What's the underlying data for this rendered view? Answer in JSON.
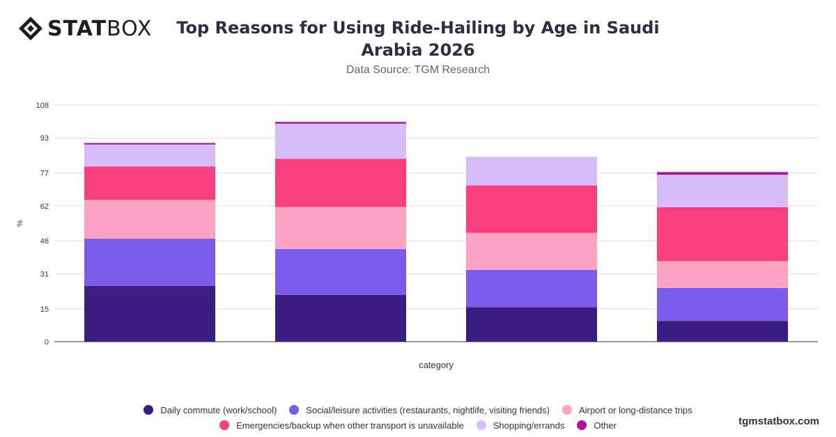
{
  "brand": {
    "logo_bold": "STAT",
    "logo_regular": "BOX",
    "website": "tgmstatbox.com"
  },
  "header": {
    "title_line1": "Top Reasons for Using Ride-Hailing by Age in Saudi",
    "title_line2": "Arabia 2026",
    "subtitle": "Data Source: TGM Research"
  },
  "chart_data": {
    "type": "bar",
    "stacked": true,
    "categories": [
      "",
      "",
      "",
      ""
    ],
    "xlabel": "category",
    "ylabel": "%",
    "ylim": [
      0,
      108
    ],
    "yticks": [
      0,
      15,
      31,
      46,
      62,
      77,
      93,
      108
    ],
    "grid": true,
    "legend_position": "bottom",
    "series": [
      {
        "name": "Daily commute (work/school)",
        "color": "#3b1c80",
        "values": [
          25.5,
          21.3,
          15.7,
          9.4
        ]
      },
      {
        "name": "Social/leisure activities (restaurants, nightlife, visiting friends)",
        "color": "#7b5bea",
        "values": [
          21.5,
          21.0,
          17.1,
          15.1
        ]
      },
      {
        "name": "Airport or long-distance trips",
        "color": "#fca3c4",
        "values": [
          17.7,
          19.2,
          16.9,
          12.3
        ]
      },
      {
        "name": "Emergencies/backup when other transport is unavailable",
        "color": "#fa3f7f",
        "values": [
          15.3,
          22.0,
          21.6,
          24.6
        ]
      },
      {
        "name": "Shopping/errands",
        "color": "#d6bdfa",
        "values": [
          10.0,
          16.0,
          13.1,
          14.8
        ]
      },
      {
        "name": "Other",
        "color": "#b0129c",
        "values": [
          0.7,
          0.8,
          0.0,
          1.2
        ]
      }
    ]
  }
}
